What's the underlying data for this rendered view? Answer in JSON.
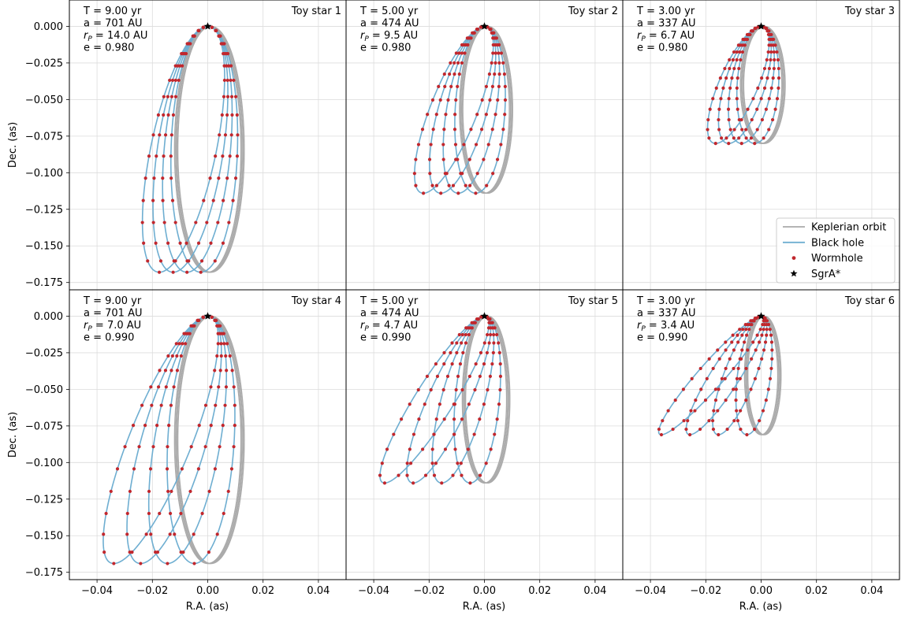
{
  "chart_data": {
    "type": "line",
    "xlabel": "R.A. (as)",
    "ylabel": "Dec. (as)",
    "xlim": [
      -0.05,
      0.05
    ],
    "ylim": [
      -0.18,
      0.018
    ],
    "grid": true,
    "legend_placement": "lower-right of Toy star 3 panel",
    "x_ticks": [
      "−0.04",
      "−0.02",
      "0.00",
      "0.02",
      "0.04"
    ],
    "y_ticks": [
      "0.000",
      "−0.025",
      "−0.050",
      "−0.075",
      "−0.100",
      "−0.125",
      "−0.150",
      "−0.175"
    ],
    "colors": {
      "kepler": "#aaaaaa",
      "blackhole": "#6eaed1",
      "wormhole": "#c1272d",
      "sgra": "#000000"
    },
    "legend": [
      {
        "label": "Keplerian orbit",
        "kind": "line",
        "color": "#aaaaaa"
      },
      {
        "label": "Black hole",
        "kind": "line",
        "color": "#6eaed1"
      },
      {
        "label": "Wormhole",
        "kind": "dot",
        "color": "#c1272d"
      },
      {
        "label": "SgrA*",
        "kind": "star",
        "color": "#000000"
      }
    ],
    "panels": [
      {
        "title": "Toy star 1",
        "info": [
          "T = 9.00 yr",
          "a = 701 AU",
          "r_P = 14.0 AU",
          "e = 0.980"
        ],
        "orbit": {
          "x_min": -0.012,
          "x_max": 0.012,
          "y_min": -0.168,
          "n_orbits": 4,
          "precession_x_per_orbit": -0.005,
          "y_bottom_shift": 0.0
        }
      },
      {
        "title": "Toy star 2",
        "info": [
          "T = 5.00 yr",
          "a = 474 AU",
          "r_P = 9.5 AU",
          "e = 0.980"
        ],
        "orbit": {
          "x_min": -0.009,
          "x_max": 0.009,
          "y_min": -0.114,
          "n_orbits": 4,
          "precession_x_per_orbit": -0.0063,
          "y_bottom_shift": 0.0
        }
      },
      {
        "title": "Toy star 3",
        "info": [
          "T = 3.00 yr",
          "a = 337 AU",
          "r_P = 6.7 AU",
          "e = 0.980"
        ],
        "orbit": {
          "x_min": -0.0075,
          "x_max": 0.0075,
          "y_min": -0.08,
          "n_orbits": 4,
          "precession_x_per_orbit": -0.0047,
          "y_bottom_shift": 0.0
        }
      },
      {
        "title": "Toy star 4",
        "info": [
          "T = 9.00 yr",
          "a = 701 AU",
          "r_P = 7.0 AU",
          "e = 0.990"
        ],
        "orbit": {
          "x_min": -0.012,
          "x_max": 0.012,
          "y_min": -0.169,
          "n_orbits": 4,
          "precession_x_per_orbit": -0.0097,
          "y_bottom_shift": 0.0
        }
      },
      {
        "title": "Toy star 5",
        "info": [
          "T = 5.00 yr",
          "a = 474 AU",
          "r_P = 4.7 AU",
          "e = 0.990"
        ],
        "orbit": {
          "x_min": -0.008,
          "x_max": 0.008,
          "y_min": -0.114,
          "n_orbits": 4,
          "precession_x_per_orbit": -0.0103,
          "y_bottom_shift": 0.0
        }
      },
      {
        "title": "Toy star 6",
        "info": [
          "T = 3.00 yr",
          "a = 337 AU",
          "r_P = 3.4 AU",
          "e = 0.990"
        ],
        "orbit": {
          "x_min": -0.006,
          "x_max": 0.006,
          "y_min": -0.081,
          "n_orbits": 4,
          "precession_x_per_orbit": -0.0103,
          "y_bottom_shift": 0.0
        }
      }
    ]
  }
}
